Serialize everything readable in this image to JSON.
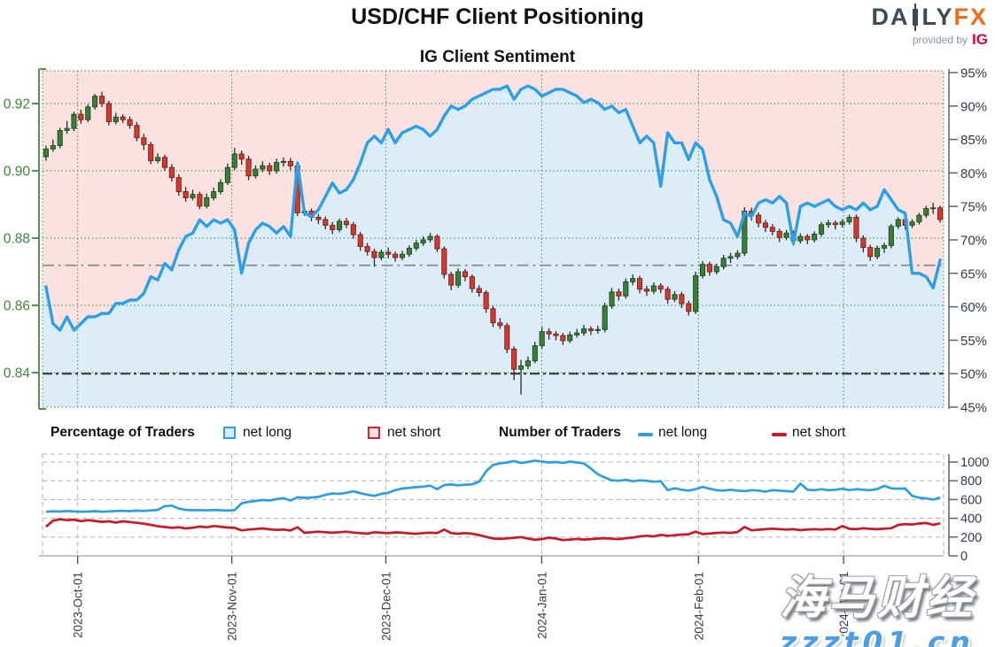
{
  "header": {
    "title": "USD/CHF Client Positioning",
    "subtitle": "IG Client Sentiment",
    "logo": {
      "part1": "DA",
      "part2": "LY",
      "fx": "FX",
      "provided_by": "provided by",
      "ig": "IG"
    }
  },
  "legend": {
    "percent_title": "Percentage of Traders",
    "percent_net_long": "net long",
    "percent_net_short": "net short",
    "number_title": "Number of Traders",
    "number_net_long": "net long",
    "number_net_short": "net short"
  },
  "watermark": {
    "line1": "海马财经",
    "line2": "zzzt01.cn"
  },
  "colors": {
    "sentiment_blue": "#2ba0e8",
    "fill_blue": "#dcedf9",
    "fill_pink": "#fbe2e0",
    "candle_green": "#3c7d38",
    "candle_green_border": "#1e4a1c",
    "candle_red": "#cf3b30",
    "candle_red_border": "#7c1d16",
    "wick": "#2b2b2b",
    "grid_green": "#4c9b4c",
    "axis_green": "#3c8a3c",
    "axis_dark": "#333d4d",
    "count_blue": "#2b9fe0",
    "count_red": "#c9182a",
    "ref_gray": "#8a8a8a",
    "ref_dark": "#3a3a3a",
    "grid_gray": "#b9b9b9"
  },
  "chart_data": {
    "type": "candlestick+line",
    "title": "USD/CHF Client Positioning",
    "subtitle": "IG Client Sentiment",
    "price_axis": {
      "values": [
        0.92,
        0.9,
        0.88,
        0.86,
        0.84
      ],
      "labels": [
        "0.92",
        "0.90",
        "0.88",
        "0.86",
        "0.84"
      ]
    },
    "pct_axis": {
      "values": [
        95,
        90,
        85,
        80,
        75,
        70,
        65,
        60,
        55,
        50,
        45
      ],
      "labels": [
        "95%",
        "90%",
        "85%",
        "80%",
        "75%",
        "70%",
        "65%",
        "60%",
        "55%",
        "50%",
        "45%"
      ]
    },
    "count_axis": {
      "values": [
        1000,
        800,
        600,
        400,
        200,
        0
      ],
      "labels": [
        "1000",
        "800",
        "600",
        "400",
        "200",
        "0"
      ]
    },
    "x_ticks": {
      "labels": [
        "2023-Oct-01",
        "2023-Nov-01",
        "2023-Dec-01",
        "2024-Jan-01",
        "2024-Feb-01",
        "2024-Mar-01"
      ],
      "fracs": [
        0.039,
        0.21,
        0.381,
        0.554,
        0.728,
        0.889
      ]
    },
    "reference_lines": {
      "pct_current_net_long": 66.2,
      "pct_midline": 50
    },
    "candles": [
      [
        0.9042,
        0.9075,
        0.903,
        0.9065
      ],
      [
        0.9065,
        0.9093,
        0.9057,
        0.9075
      ],
      [
        0.9075,
        0.9128,
        0.9067,
        0.912
      ],
      [
        0.912,
        0.9148,
        0.911,
        0.9126
      ],
      [
        0.9126,
        0.9176,
        0.9118,
        0.9168
      ],
      [
        0.9168,
        0.9182,
        0.914,
        0.9152
      ],
      [
        0.9152,
        0.9198,
        0.9144,
        0.919
      ],
      [
        0.919,
        0.9228,
        0.9182,
        0.9222
      ],
      [
        0.9222,
        0.9235,
        0.919,
        0.92
      ],
      [
        0.92,
        0.9208,
        0.9135,
        0.9146
      ],
      [
        0.9146,
        0.9172,
        0.9138,
        0.916
      ],
      [
        0.916,
        0.9168,
        0.9142,
        0.9152
      ],
      [
        0.9152,
        0.9162,
        0.9125,
        0.9135
      ],
      [
        0.9135,
        0.9145,
        0.9088,
        0.9098
      ],
      [
        0.9098,
        0.911,
        0.9062,
        0.9078
      ],
      [
        0.9078,
        0.9086,
        0.902,
        0.903
      ],
      [
        0.903,
        0.9052,
        0.9022,
        0.904
      ],
      [
        0.904,
        0.9048,
        0.9,
        0.901
      ],
      [
        0.901,
        0.902,
        0.8968,
        0.898
      ],
      [
        0.898,
        0.899,
        0.8926,
        0.8938
      ],
      [
        0.8938,
        0.8952,
        0.8908,
        0.892
      ],
      [
        0.892,
        0.8944,
        0.8912,
        0.893
      ],
      [
        0.893,
        0.8938,
        0.8886,
        0.8895
      ],
      [
        0.8895,
        0.8932,
        0.8888,
        0.892
      ],
      [
        0.892,
        0.895,
        0.8912,
        0.8938
      ],
      [
        0.8938,
        0.8975,
        0.893,
        0.8965
      ],
      [
        0.8965,
        0.9022,
        0.8958,
        0.901
      ],
      [
        0.901,
        0.9068,
        0.9002,
        0.905
      ],
      [
        0.905,
        0.906,
        0.9018,
        0.9035
      ],
      [
        0.9035,
        0.9045,
        0.8972,
        0.8985
      ],
      [
        0.8985,
        0.9016,
        0.8977,
        0.9005
      ],
      [
        0.9005,
        0.9028,
        0.8996,
        0.9015
      ],
      [
        0.9015,
        0.9024,
        0.8988,
        0.9
      ],
      [
        0.9,
        0.9036,
        0.8992,
        0.9025
      ],
      [
        0.9025,
        0.904,
        0.9012,
        0.9028
      ],
      [
        0.9028,
        0.9038,
        0.9002,
        0.9015
      ],
      [
        0.9015,
        0.9022,
        0.8865,
        0.8875
      ],
      [
        0.8875,
        0.8892,
        0.8866,
        0.888
      ],
      [
        0.888,
        0.8888,
        0.885,
        0.8862
      ],
      [
        0.8862,
        0.8872,
        0.8842,
        0.8855
      ],
      [
        0.8855,
        0.8864,
        0.8826,
        0.8838
      ],
      [
        0.8838,
        0.8848,
        0.8812,
        0.8825
      ],
      [
        0.8825,
        0.8858,
        0.8817,
        0.885
      ],
      [
        0.885,
        0.886,
        0.883,
        0.884
      ],
      [
        0.884,
        0.8848,
        0.8798,
        0.881
      ],
      [
        0.881,
        0.8818,
        0.8762,
        0.8775
      ],
      [
        0.8775,
        0.8785,
        0.8748,
        0.876
      ],
      [
        0.876,
        0.8768,
        0.8715,
        0.8742
      ],
      [
        0.8742,
        0.8766,
        0.8734,
        0.8758
      ],
      [
        0.8758,
        0.8772,
        0.874,
        0.8752
      ],
      [
        0.8752,
        0.876,
        0.873,
        0.8742
      ],
      [
        0.8742,
        0.8762,
        0.8734,
        0.8752
      ],
      [
        0.8752,
        0.8778,
        0.8744,
        0.877
      ],
      [
        0.877,
        0.8795,
        0.8762,
        0.8785
      ],
      [
        0.8785,
        0.8805,
        0.8777,
        0.8795
      ],
      [
        0.8795,
        0.8815,
        0.8787,
        0.8805
      ],
      [
        0.8805,
        0.8812,
        0.8758,
        0.8768
      ],
      [
        0.8768,
        0.8775,
        0.868,
        0.8692
      ],
      [
        0.8692,
        0.87,
        0.8645,
        0.866
      ],
      [
        0.866,
        0.871,
        0.8652,
        0.87
      ],
      [
        0.87,
        0.8708,
        0.8672,
        0.8685
      ],
      [
        0.8685,
        0.8692,
        0.8638,
        0.865
      ],
      [
        0.865,
        0.866,
        0.8626,
        0.8638
      ],
      [
        0.8638,
        0.8645,
        0.8578,
        0.859
      ],
      [
        0.859,
        0.8598,
        0.8536,
        0.8548
      ],
      [
        0.8548,
        0.8562,
        0.853,
        0.854
      ],
      [
        0.854,
        0.8548,
        0.8458,
        0.847
      ],
      [
        0.847,
        0.8478,
        0.8378,
        0.841
      ],
      [
        0.841,
        0.8438,
        0.8335,
        0.842
      ],
      [
        0.842,
        0.8448,
        0.841,
        0.8435
      ],
      [
        0.8435,
        0.8492,
        0.8428,
        0.848
      ],
      [
        0.848,
        0.8535,
        0.8472,
        0.8522
      ],
      [
        0.8522,
        0.8532,
        0.8498,
        0.8515
      ],
      [
        0.8515,
        0.8524,
        0.8496,
        0.851
      ],
      [
        0.851,
        0.8518,
        0.8482,
        0.8495
      ],
      [
        0.8495,
        0.8522,
        0.8488,
        0.8512
      ],
      [
        0.8512,
        0.853,
        0.8504,
        0.8518
      ],
      [
        0.8518,
        0.8542,
        0.851,
        0.853
      ],
      [
        0.853,
        0.8538,
        0.8512,
        0.8525
      ],
      [
        0.8525,
        0.854,
        0.8516,
        0.8528
      ],
      [
        0.8528,
        0.8608,
        0.852,
        0.8598
      ],
      [
        0.8598,
        0.8652,
        0.859,
        0.864
      ],
      [
        0.864,
        0.865,
        0.8614,
        0.8628
      ],
      [
        0.8628,
        0.868,
        0.862,
        0.867
      ],
      [
        0.867,
        0.8692,
        0.866,
        0.868
      ],
      [
        0.868,
        0.8688,
        0.8636,
        0.8648
      ],
      [
        0.8648,
        0.8658,
        0.8628,
        0.8642
      ],
      [
        0.8642,
        0.8668,
        0.8634,
        0.8658
      ],
      [
        0.8658,
        0.8666,
        0.8636,
        0.8648
      ],
      [
        0.8648,
        0.8656,
        0.8605,
        0.8618
      ],
      [
        0.8618,
        0.8642,
        0.861,
        0.8632
      ],
      [
        0.8632,
        0.864,
        0.8592,
        0.8605
      ],
      [
        0.8605,
        0.8614,
        0.857,
        0.8582
      ],
      [
        0.8582,
        0.87,
        0.8574,
        0.8688
      ],
      [
        0.8688,
        0.8732,
        0.868,
        0.8722
      ],
      [
        0.8722,
        0.873,
        0.8688,
        0.87
      ],
      [
        0.87,
        0.8724,
        0.8692,
        0.8715
      ],
      [
        0.8715,
        0.875,
        0.8707,
        0.874
      ],
      [
        0.874,
        0.8756,
        0.8726,
        0.8745
      ],
      [
        0.8745,
        0.8764,
        0.8737,
        0.8755
      ],
      [
        0.8755,
        0.8892,
        0.8747,
        0.888
      ],
      [
        0.888,
        0.889,
        0.8852,
        0.8868
      ],
      [
        0.8868,
        0.8876,
        0.8832,
        0.8845
      ],
      [
        0.8845,
        0.8854,
        0.8818,
        0.8832
      ],
      [
        0.8832,
        0.8842,
        0.8808,
        0.882
      ],
      [
        0.882,
        0.8828,
        0.8788,
        0.8802
      ],
      [
        0.8802,
        0.8824,
        0.8794,
        0.8815
      ],
      [
        0.8815,
        0.8822,
        0.8778,
        0.8792
      ],
      [
        0.8792,
        0.8814,
        0.8784,
        0.8805
      ],
      [
        0.8805,
        0.8812,
        0.8782,
        0.8795
      ],
      [
        0.8795,
        0.882,
        0.8787,
        0.8812
      ],
      [
        0.8812,
        0.8848,
        0.8804,
        0.884
      ],
      [
        0.884,
        0.8854,
        0.883,
        0.8845
      ],
      [
        0.8845,
        0.8852,
        0.8826,
        0.884
      ],
      [
        0.884,
        0.8856,
        0.8832,
        0.8848
      ],
      [
        0.8848,
        0.887,
        0.884,
        0.8862
      ],
      [
        0.8862,
        0.887,
        0.8788,
        0.88
      ],
      [
        0.88,
        0.8808,
        0.8758,
        0.8772
      ],
      [
        0.8772,
        0.878,
        0.8732,
        0.8745
      ],
      [
        0.8745,
        0.8778,
        0.8737,
        0.877
      ],
      [
        0.877,
        0.8786,
        0.8756,
        0.8778
      ],
      [
        0.8778,
        0.8842,
        0.877,
        0.8835
      ],
      [
        0.8835,
        0.8862,
        0.8827,
        0.8855
      ],
      [
        0.8855,
        0.8862,
        0.8826,
        0.8838
      ],
      [
        0.8838,
        0.8856,
        0.883,
        0.8848
      ],
      [
        0.8848,
        0.8875,
        0.884,
        0.8868
      ],
      [
        0.8868,
        0.8896,
        0.886,
        0.8888
      ],
      [
        0.8888,
        0.8905,
        0.8872,
        0.889
      ],
      [
        0.889,
        0.8896,
        0.8846,
        0.8855
      ]
    ],
    "percent_net_long": [
      63,
      57.5,
      56.5,
      58.5,
      56.5,
      57.5,
      58.5,
      58.5,
      59,
      59,
      60.5,
      60.5,
      61,
      61,
      62,
      64.5,
      64,
      66.5,
      65.5,
      68.5,
      70.5,
      71,
      73,
      72,
      73,
      72.5,
      73,
      71.5,
      65,
      69.5,
      71.5,
      72.5,
      72,
      71,
      72,
      70.5,
      81.5,
      74,
      73.5,
      74.5,
      76.5,
      78.5,
      77,
      77.5,
      79,
      81.5,
      84.5,
      85.5,
      84.5,
      86.5,
      84.5,
      86,
      86.5,
      87,
      86.5,
      85.5,
      86.5,
      88.5,
      90,
      89.5,
      90,
      91,
      91.5,
      92,
      92.5,
      92.5,
      93,
      91,
      92.5,
      93,
      92.5,
      91.5,
      92,
      92.5,
      92.5,
      92,
      91.5,
      90.5,
      91,
      90.5,
      89.5,
      90,
      89,
      89.5,
      87,
      84.5,
      85.5,
      84.5,
      78,
      86,
      84.5,
      84.5,
      82,
      84.5,
      83.5,
      79,
      76.5,
      73,
      72.5,
      70.5,
      74,
      73.5,
      75.5,
      76,
      75.5,
      76.5,
      75.5,
      69.5,
      75,
      75.5,
      75,
      75.5,
      76,
      75,
      74.5,
      75,
      74.5,
      75.5,
      74.5,
      75,
      77.5,
      76,
      74.5,
      74,
      65,
      65,
      64.5,
      62.8,
      67
    ],
    "traders_net_long": [
      470,
      475,
      472,
      478,
      474,
      470,
      472,
      476,
      470,
      474,
      478,
      480,
      476,
      482,
      478,
      484,
      490,
      530,
      535,
      505,
      490,
      486,
      488,
      484,
      490,
      486,
      482,
      488,
      560,
      575,
      585,
      595,
      590,
      605,
      615,
      590,
      625,
      618,
      622,
      628,
      650,
      665,
      660,
      672,
      688,
      668,
      652,
      640,
      660,
      672,
      700,
      718,
      725,
      732,
      738,
      748,
      710,
      755,
      760,
      752,
      758,
      762,
      790,
      900,
      970,
      985,
      995,
      1010,
      990,
      1000,
      1015,
      1005,
      995,
      1000,
      990,
      1005,
      995,
      985,
      930,
      870,
      835,
      805,
      800,
      810,
      795,
      805,
      800,
      790,
      795,
      700,
      720,
      705,
      695,
      710,
      735,
      715,
      700,
      695,
      705,
      695,
      690,
      700,
      695,
      685,
      700,
      695,
      690,
      685,
      770,
      705,
      700,
      710,
      700,
      705,
      715,
      700,
      710,
      705,
      700,
      712,
      745,
      720,
      715,
      718,
      640,
      620,
      612,
      600,
      622
    ],
    "traders_net_short": [
      310,
      375,
      390,
      380,
      385,
      370,
      380,
      372,
      362,
      368,
      355,
      368,
      360,
      352,
      342,
      330,
      315,
      308,
      298,
      305,
      292,
      300,
      312,
      305,
      318,
      310,
      302,
      298,
      272,
      280,
      286,
      292,
      282,
      276,
      280,
      270,
      305,
      245,
      252,
      258,
      252,
      246,
      252,
      258,
      248,
      242,
      236,
      252,
      246,
      242,
      250,
      246,
      240,
      236,
      242,
      246,
      242,
      280,
      242,
      236,
      242,
      236,
      222,
      202,
      185,
      180,
      186,
      192,
      200,
      184,
      172,
      178,
      194,
      184,
      168,
      174,
      180,
      174,
      178,
      184,
      188,
      182,
      178,
      188,
      194,
      208,
      214,
      208,
      224,
      214,
      220,
      226,
      230,
      258,
      232,
      238,
      244,
      248,
      244,
      254,
      308,
      272,
      278,
      284,
      290,
      284,
      280,
      284,
      274,
      280,
      284,
      280,
      286,
      280,
      318,
      288,
      284,
      294,
      288,
      284,
      290,
      294,
      330,
      338,
      334,
      344,
      350,
      330,
      346
    ]
  }
}
